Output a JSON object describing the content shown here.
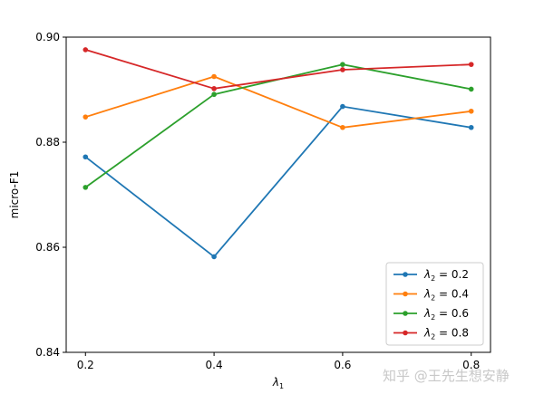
{
  "chart_data": {
    "type": "line",
    "title": "",
    "xlabel_base": "λ",
    "xlabel_sub": "1",
    "ylabel": "micro-F1",
    "x": [
      0.2,
      0.4,
      0.6,
      0.8
    ],
    "x_tick_labels": [
      "0.2",
      "0.4",
      "0.6",
      "0.8"
    ],
    "y_tick_labels": [
      "0.84",
      "0.86",
      "0.88",
      "0.90"
    ],
    "y_ticks": [
      0.84,
      0.86,
      0.88,
      0.9
    ],
    "xlim": [
      0.17,
      0.83
    ],
    "ylim": [
      0.84,
      0.9
    ],
    "grid": false,
    "legend_position": "lower-right",
    "legend_symbol": "λ",
    "legend_sub": "2",
    "series": [
      {
        "name": "= 0.2",
        "color": "#1f77b4",
        "values": [
          0.8772,
          0.8582,
          0.8868,
          0.8828
        ]
      },
      {
        "name": "= 0.4",
        "color": "#ff7f0e",
        "values": [
          0.8848,
          0.8925,
          0.8828,
          0.8859
        ]
      },
      {
        "name": "= 0.6",
        "color": "#2ca02c",
        "values": [
          0.8714,
          0.8891,
          0.8948,
          0.8901
        ]
      },
      {
        "name": "= 0.8",
        "color": "#d62728",
        "values": [
          0.8976,
          0.8902,
          0.8938,
          0.8948
        ]
      }
    ]
  },
  "watermark": "知乎 @王先生想安静"
}
